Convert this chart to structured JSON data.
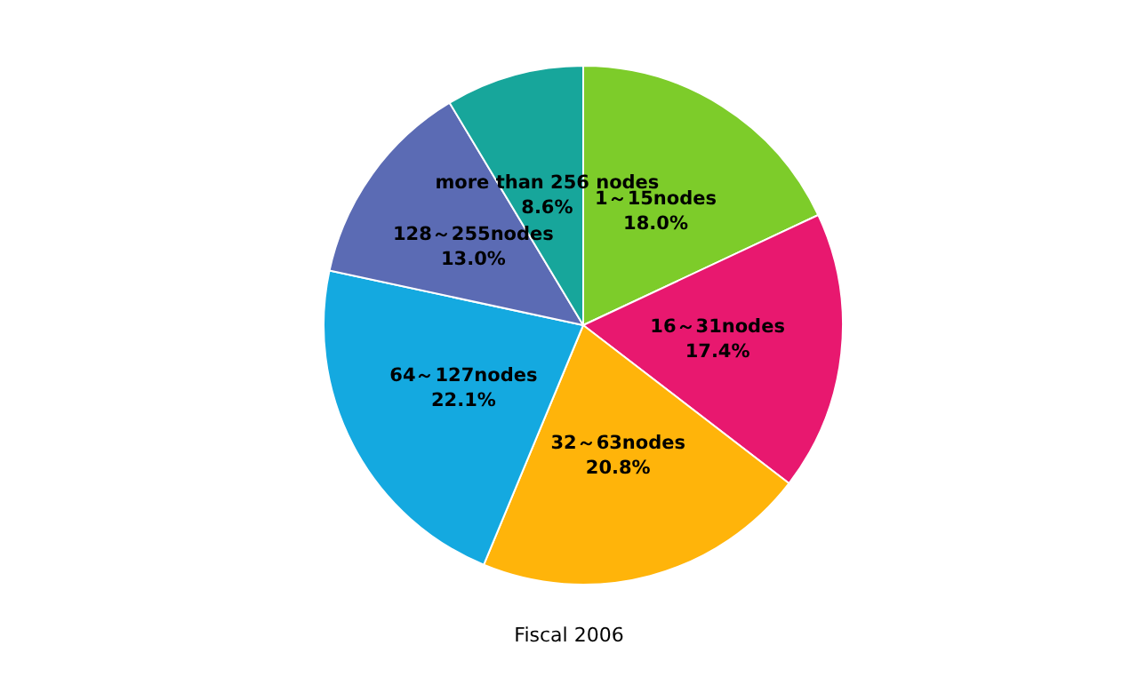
{
  "chart_data": {
    "type": "pie",
    "title": "Fiscal 2006",
    "categories": [
      "1～15nodes",
      "16～31nodes",
      "32～63nodes",
      "64～127nodes",
      "128～255nodes",
      "more than 256 nodes"
    ],
    "values": [
      18.0,
      17.4,
      20.8,
      22.1,
      13.0,
      8.6
    ],
    "value_labels": [
      "18.0%",
      "17.4%",
      "20.8%",
      "22.1%",
      "13.0%",
      "8.6%"
    ],
    "colors": [
      "#7dcc2a",
      "#e8186f",
      "#ffb40a",
      "#14a9e0",
      "#5b6bb4",
      "#17a69b"
    ],
    "legend": false
  }
}
